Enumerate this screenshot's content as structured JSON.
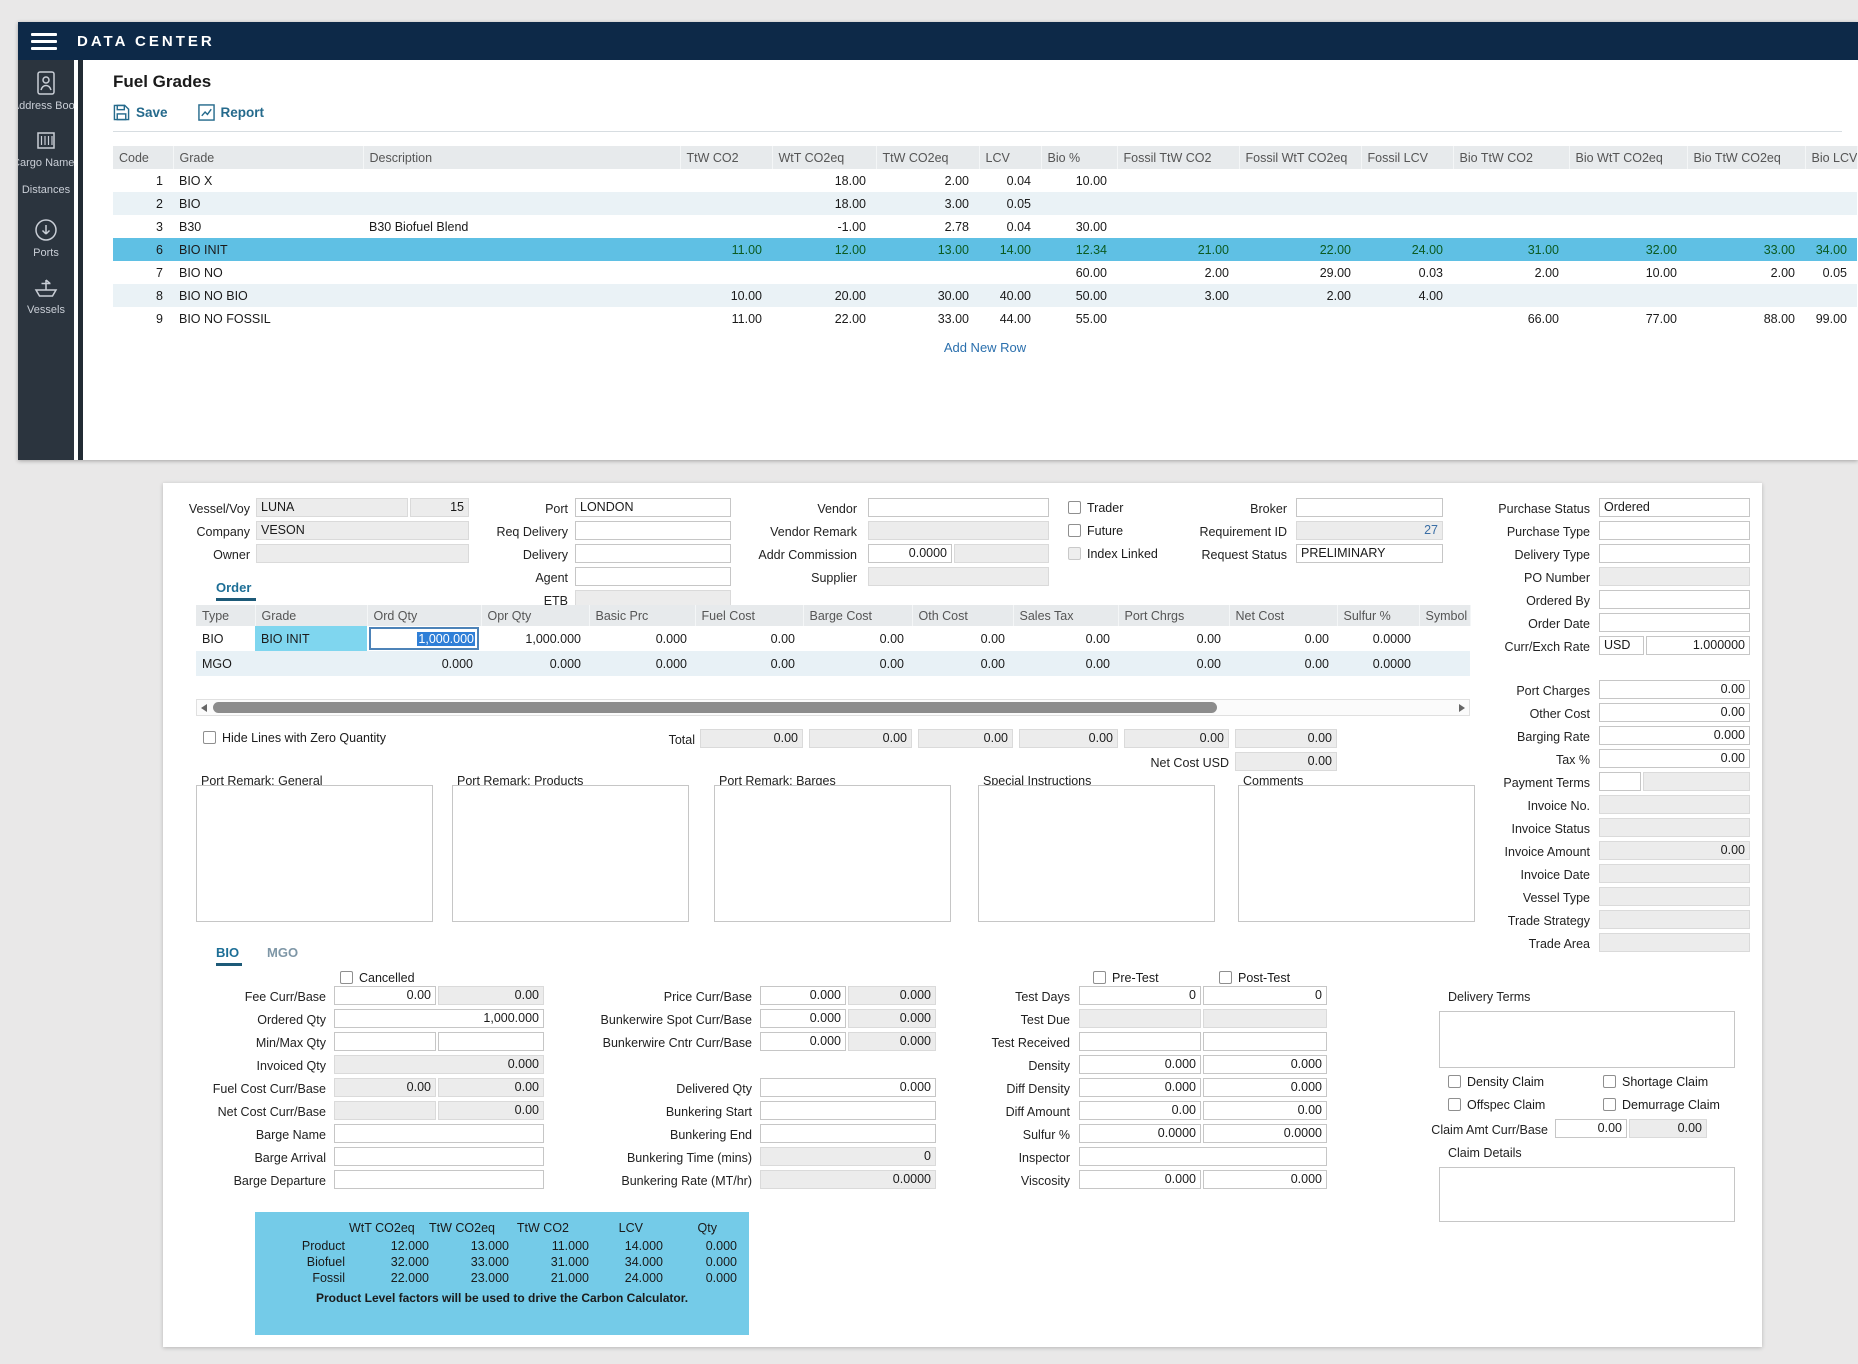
{
  "colors": {
    "header_navy": "#0d2948",
    "sidebar_dark": "#2b343e",
    "selected_row_cyan": "#5fc0e4",
    "grade_highlight_cyan": "#7fd6ef",
    "carbon_panel_blue": "#74cbe8",
    "link_blue": "#2a6fad",
    "tab_active_teal": "#1c6e96",
    "modified_value_green": "#0b5a20"
  },
  "app": {
    "title": "DATA CENTER"
  },
  "sidebar": {
    "items": [
      {
        "icon": "address-book-icon",
        "label": "Address Book"
      },
      {
        "icon": "cargo-names-icon",
        "label": "Cargo Names"
      },
      {
        "icon": "distances-icon",
        "label": "Distances"
      },
      {
        "icon": "ports-icon",
        "label": "Ports"
      },
      {
        "icon": "vessels-icon",
        "label": "Vessels"
      }
    ]
  },
  "fuel_grades": {
    "title": "Fuel Grades",
    "save_label": "Save",
    "report_label": "Report",
    "add_new_row": "Add New Row",
    "columns": [
      "Code",
      "Grade",
      "Description",
      "TtW CO2",
      "WtT CO2eq",
      "TtW CO2eq",
      "LCV",
      "Bio %",
      "Fossil TtW CO2",
      "Fossil WtT CO2eq",
      "Fossil LCV",
      "Bio TtW CO2",
      "Bio WtT CO2eq",
      "Bio TtW CO2eq",
      "Bio LCV"
    ],
    "rows": [
      {
        "code": "1",
        "grade": "BIO X",
        "description": "",
        "selected": false,
        "values": [
          "",
          "18.00",
          "2.00",
          "0.04",
          "10.00",
          "",
          "",
          "",
          "",
          "",
          "",
          ""
        ]
      },
      {
        "code": "2",
        "grade": "BIO",
        "description": "",
        "selected": false,
        "values": [
          "",
          "18.00",
          "3.00",
          "0.05",
          "",
          "",
          "",
          "",
          "",
          "",
          "",
          ""
        ]
      },
      {
        "code": "3",
        "grade": "B30",
        "description": "B30 Biofuel Blend",
        "selected": false,
        "values": [
          "",
          "-1.00",
          "2.78",
          "0.04",
          "30.00",
          "",
          "",
          "",
          "",
          "",
          "",
          ""
        ]
      },
      {
        "code": "6",
        "grade": "BIO INIT",
        "description": "",
        "selected": true,
        "values": [
          "11.00",
          "12.00",
          "13.00",
          "14.00",
          "12.34",
          "21.00",
          "22.00",
          "24.00",
          "31.00",
          "32.00",
          "33.00",
          "34.00"
        ]
      },
      {
        "code": "7",
        "grade": "BIO NO",
        "description": "",
        "selected": false,
        "values": [
          "",
          "",
          "",
          "",
          "60.00",
          "2.00",
          "29.00",
          "0.03",
          "2.00",
          "10.00",
          "2.00",
          "0.05"
        ]
      },
      {
        "code": "8",
        "grade": "BIO NO BIO",
        "description": "",
        "selected": false,
        "values": [
          "10.00",
          "20.00",
          "30.00",
          "40.00",
          "50.00",
          "3.00",
          "2.00",
          "4.00",
          "",
          "",
          "",
          ""
        ]
      },
      {
        "code": "9",
        "grade": "BIO NO FOSSIL",
        "description": "",
        "selected": false,
        "values": [
          "11.00",
          "22.00",
          "33.00",
          "44.00",
          "55.00",
          "",
          "",
          "",
          "66.00",
          "77.00",
          "88.00",
          "99.00"
        ]
      }
    ]
  },
  "form": {
    "vessel_voy_label": "Vessel/Voy",
    "vessel": "LUNA",
    "voyage": "15",
    "company_label": "Company",
    "company": "VESON",
    "owner_label": "Owner",
    "owner": "",
    "port_label": "Port",
    "port": "LONDON",
    "req_delivery_label": "Req Delivery",
    "req_delivery": "",
    "delivery_label": "Delivery",
    "delivery": "",
    "agent_label": "Agent",
    "agent": "",
    "etb_label": "ETB",
    "etb": "",
    "vendor_label": "Vendor",
    "vendor": "",
    "vendor_remark_label": "Vendor Remark",
    "vendor_remark": "",
    "addr_commission_label": "Addr Commission",
    "addr_commission": "0.0000",
    "supplier_label": "Supplier",
    "supplier": "",
    "trader_label": "Trader",
    "future_label": "Future",
    "index_linked_label": "Index Linked",
    "broker_label": "Broker",
    "broker": "",
    "requirement_id_label": "Requirement ID",
    "requirement_id": "27",
    "request_status_label": "Request Status",
    "request_status": "PRELIMINARY",
    "purchase_status_label": "Purchase Status",
    "purchase_status": "Ordered",
    "purchase_type_label": "Purchase Type",
    "purchase_type": "",
    "delivery_type_label": "Delivery Type",
    "delivery_type": "",
    "po_number_label": "PO Number",
    "po_number": "",
    "ordered_by_label": "Ordered By",
    "ordered_by": "",
    "order_date_label": "Order Date",
    "order_date": "",
    "curr_exch_label": "Curr/Exch Rate",
    "currency": "USD",
    "exch_rate": "1.000000",
    "port_charges_label": "Port Charges",
    "port_charges": "0.00",
    "other_cost_label": "Other Cost",
    "other_cost": "0.00",
    "barging_rate_label": "Barging Rate",
    "barging_rate": "0.000",
    "tax_pct_label": "Tax %",
    "tax_pct": "0.00",
    "payment_terms_label": "Payment Terms",
    "payment_terms": "",
    "invoice_no_label": "Invoice No.",
    "invoice_no": "",
    "invoice_status_label": "Invoice Status",
    "invoice_status": "",
    "invoice_amount_label": "Invoice Amount",
    "invoice_amount": "0.00",
    "invoice_date_label": "Invoice Date",
    "invoice_date": "",
    "vessel_type_label": "Vessel Type",
    "vessel_type": "",
    "trade_strategy_label": "Trade Strategy",
    "trade_strategy": "",
    "trade_area_label": "Trade Area",
    "trade_area": ""
  },
  "order_table": {
    "tab_label": "Order",
    "columns": [
      "Type",
      "Grade",
      "Ord Qty",
      "Opr Qty",
      "Basic Prc",
      "Fuel Cost",
      "Barge Cost",
      "Oth Cost",
      "Sales Tax",
      "Port Chrgs",
      "Net Cost",
      "Sulfur %",
      "Symbol"
    ],
    "rows": [
      {
        "type": "BIO",
        "grade": "BIO INIT",
        "grade_highlight": true,
        "ord_qty": "1,000.000",
        "editing": true,
        "opr_qty": "1,000.000",
        "basic_prc": "0.000",
        "fuel_cost": "0.00",
        "barge_cost": "0.00",
        "oth_cost": "0.00",
        "sales_tax": "0.00",
        "port_chrgs": "0.00",
        "net_cost": "0.00",
        "sulfur": "0.0000",
        "symbol": ""
      },
      {
        "type": "MGO",
        "grade": "",
        "grade_highlight": false,
        "ord_qty": "0.000",
        "editing": false,
        "opr_qty": "0.000",
        "basic_prc": "0.000",
        "fuel_cost": "0.00",
        "barge_cost": "0.00",
        "oth_cost": "0.00",
        "sales_tax": "0.00",
        "port_chrgs": "0.00",
        "net_cost": "0.00",
        "sulfur": "0.0000",
        "symbol": ""
      }
    ]
  },
  "totals": {
    "hide_lines_label": "Hide Lines with Zero Quantity",
    "total_label": "Total",
    "values": [
      "0.00",
      "0.00",
      "0.00",
      "0.00",
      "0.00",
      "0.00"
    ],
    "net_cost_usd_label": "Net Cost USD",
    "net_cost_usd": "0.00"
  },
  "remarks": {
    "general_label": "Port Remark: General",
    "products_label": "Port Remark: Products",
    "barges_label": "Port Remark: Barges",
    "special_label": "Special Instructions",
    "comments_label": "Comments"
  },
  "detail": {
    "tab_bio": "BIO",
    "tab_mgo": "MGO",
    "cancelled_label": "Cancelled",
    "fee": {
      "label": "Fee Curr/Base",
      "curr": "0.00",
      "base": "0.00"
    },
    "ordered_qty": {
      "label": "Ordered Qty",
      "value": "1,000.000"
    },
    "min_max": {
      "label": "Min/Max Qty",
      "min": "",
      "max": ""
    },
    "invoiced_qty": {
      "label": "Invoiced Qty",
      "value": "0.000"
    },
    "fuel_cost": {
      "label": "Fuel Cost Curr/Base",
      "curr": "0.00",
      "base": "0.00"
    },
    "net_cost": {
      "label": "Net Cost Curr/Base",
      "curr": "0.00",
      "base": "0.00"
    },
    "barge_name": {
      "label": "Barge Name",
      "value": ""
    },
    "barge_arrival": {
      "label": "Barge Arrival",
      "value": ""
    },
    "barge_departure": {
      "label": "Barge Departure",
      "value": ""
    },
    "price": {
      "label": "Price Curr/Base",
      "curr": "0.000",
      "base": "0.000"
    },
    "bw_spot": {
      "label": "Bunkerwire Spot Curr/Base",
      "curr": "0.000",
      "base": "0.000"
    },
    "bw_cntr": {
      "label": "Bunkerwire Cntr Curr/Base",
      "curr": "0.000",
      "base": "0.000"
    },
    "delivered_qty": {
      "label": "Delivered Qty",
      "value": "0.000"
    },
    "bunkering_start": {
      "label": "Bunkering Start",
      "value": ""
    },
    "bunkering_end": {
      "label": "Bunkering End",
      "value": ""
    },
    "bunkering_time": {
      "label": "Bunkering Time (mins)",
      "value": "0"
    },
    "bunkering_rate": {
      "label": "Bunkering Rate (MT/hr)",
      "value": "0.0000"
    },
    "pre_test_label": "Pre-Test",
    "post_test_label": "Post-Test",
    "test_days": {
      "label": "Test Days",
      "pre": "0",
      "post": "0"
    },
    "test_due": {
      "label": "Test Due",
      "pre": "",
      "post": ""
    },
    "test_received": {
      "label": "Test Received",
      "pre": "",
      "post": ""
    },
    "density": {
      "label": "Density",
      "pre": "0.000",
      "post": "0.000"
    },
    "diff_density": {
      "label": "Diff Density",
      "pre": "0.000",
      "post": "0.000"
    },
    "diff_amount": {
      "label": "Diff Amount",
      "pre": "0.00",
      "post": "0.00"
    },
    "sulfur": {
      "label": "Sulfur %",
      "pre": "0.0000",
      "post": "0.0000"
    },
    "inspector": {
      "label": "Inspector",
      "value": ""
    },
    "viscosity": {
      "label": "Viscosity",
      "pre": "0.000",
      "post": "0.000"
    },
    "delivery_terms": {
      "label": "Delivery Terms",
      "value": ""
    },
    "density_claim_label": "Density Claim",
    "shortage_claim_label": "Shortage Claim",
    "offspec_claim_label": "Offspec Claim",
    "demurrage_claim_label": "Demurrage Claim",
    "claim_amt": {
      "label": "Claim Amt Curr/Base",
      "curr": "0.00",
      "base": "0.00"
    },
    "claim_details": {
      "label": "Claim Details",
      "value": ""
    }
  },
  "carbon": {
    "columns": [
      "WtT CO2eq",
      "TtW CO2eq",
      "TtW CO2",
      "LCV",
      "Qty"
    ],
    "rows": [
      {
        "label": "Product",
        "values": [
          "12.000",
          "13.000",
          "11.000",
          "14.000",
          "0.000"
        ]
      },
      {
        "label": "Biofuel",
        "values": [
          "32.000",
          "33.000",
          "31.000",
          "34.000",
          "0.000"
        ]
      },
      {
        "label": "Fossil",
        "values": [
          "22.000",
          "23.000",
          "21.000",
          "24.000",
          "0.000"
        ]
      }
    ],
    "note": "Product Level factors will be used to drive the Carbon Calculator."
  }
}
